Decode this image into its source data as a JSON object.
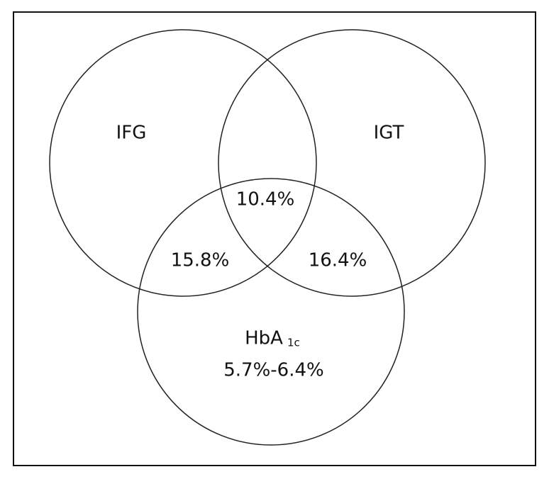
{
  "sets": [
    {
      "label": "IFG"
    },
    {
      "label": "IGT"
    },
    {
      "label": "HbA",
      "label_subscript": "1c",
      "range": "5.7%-6.4%"
    }
  ],
  "regions": [
    {
      "sets": "IFG-IGT-HbA1c",
      "label": "10.4%"
    },
    {
      "sets": "IFG-HbA1c",
      "label": "15.8%"
    },
    {
      "sets": "IGT-HbA1c",
      "label": "16.4%"
    }
  ]
}
